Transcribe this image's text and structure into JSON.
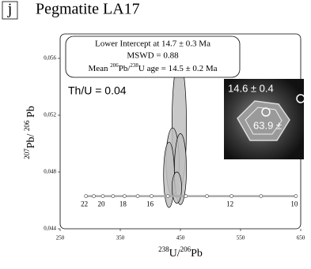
{
  "chart_data": {
    "type": "concordia",
    "panel_label": "j",
    "title": "Pegmatite LA17",
    "x_label": [
      "238",
      "U/",
      "206",
      "Pb"
    ],
    "y_label": [
      "207",
      "Pb/ ",
      "206",
      " Pb"
    ],
    "annotation_box": {
      "line1": "Lower Intercept at 14.7 ± 0.3 Ma",
      "line2": "MSWD = 0.88",
      "line3": [
        "Mean ",
        "206",
        "Pb/",
        "238",
        "U age = 14.5 ± 0.2 Ma"
      ]
    },
    "ratio_note": "Th/U = 0.04",
    "inset_labels": [
      "14.6 ± 0.4",
      "63.9 ±"
    ],
    "xlim": [
      250,
      650
    ],
    "xticks": [
      250,
      350,
      450,
      550,
      650
    ],
    "ylim": [
      0.044,
      0.0577
    ],
    "yticks": [
      {
        "value": 0.044,
        "label": "0,044"
      },
      {
        "value": 0.048,
        "label": "0,048"
      },
      {
        "value": 0.052,
        "label": "0,052"
      },
      {
        "value": 0.056,
        "label": "0,056"
      }
    ],
    "concordia": {
      "x": [
        293,
        306,
        321,
        338,
        357,
        379,
        402,
        429,
        459,
        494,
        535,
        584,
        642
      ],
      "y": [
        0.0463,
        0.0463,
        0.0463,
        0.0463,
        0.0463,
        0.0463,
        0.0463,
        0.0463,
        0.0463,
        0.0463,
        0.0463,
        0.0463,
        0.0463
      ],
      "labels": [
        22,
        null,
        20,
        null,
        18,
        null,
        16,
        null,
        null,
        null,
        12,
        null,
        10
      ],
      "color": "#aaaaaa"
    },
    "ellipses": {
      "color": "#c0c0c0",
      "x": [
        448,
        437,
        431,
        450,
        444
      ],
      "y": [
        0.0513,
        0.0487,
        0.0478,
        0.0482,
        0.0469
      ],
      "x_half": [
        12,
        11,
        9,
        10,
        8
      ],
      "y_half": [
        0.0046,
        0.0024,
        0.0023,
        0.0025,
        0.0011
      ]
    }
  }
}
